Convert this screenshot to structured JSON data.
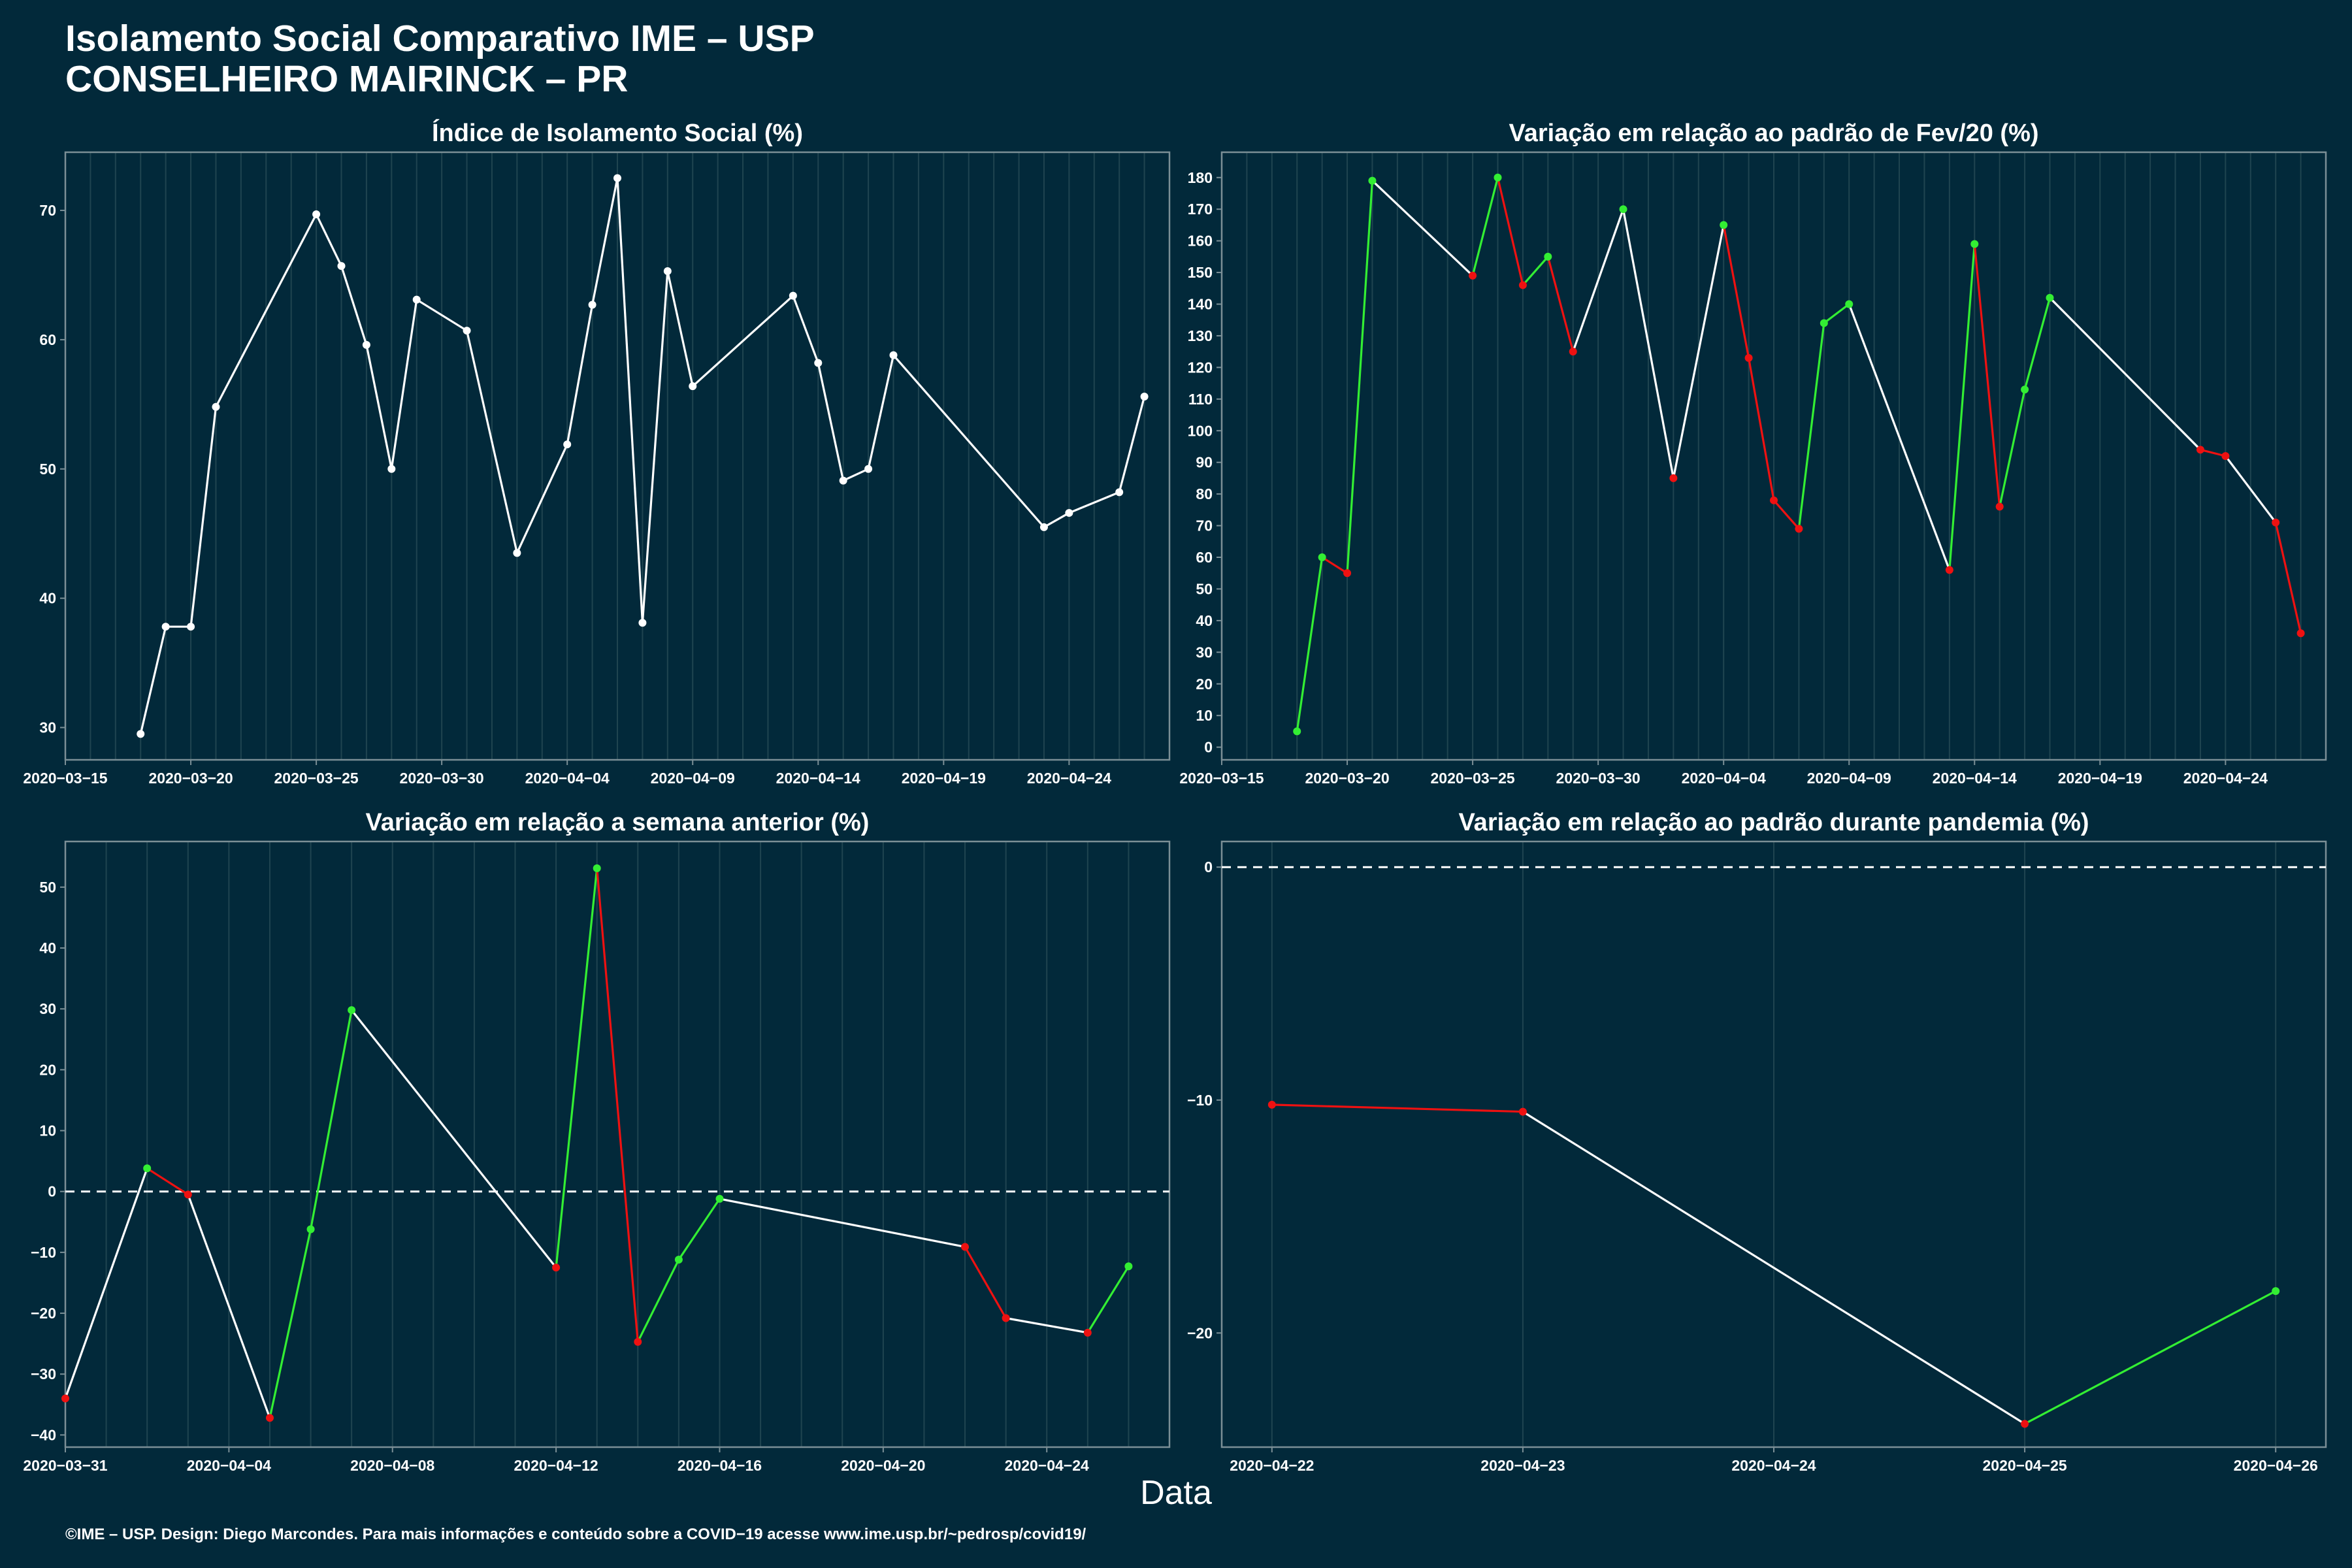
{
  "header": {
    "title_line1": "Isolamento Social Comparativo IME – USP",
    "title_line2": "CONSELHEIRO MAIRINCK – PR"
  },
  "x_axis_title": "Data",
  "caption": "©IME – USP. Design: Diego Marcondes. Para mais informações e conteúdo sobre a COVID−19 acesse www.ime.usp.br/~pedrosp/covid19/",
  "colors": {
    "background": "#02293a",
    "line": "#ffffff",
    "up": "#33ee33",
    "down": "#ee1111",
    "grid": "#1f4450",
    "frame": "#7b8f96"
  },
  "chart_data": [
    {
      "id": "isolation_index",
      "type": "line",
      "title": "Índice de Isolamento Social (%)",
      "xlim": [
        "2020-03-15",
        "2020-04-28"
      ],
      "ylim": [
        27.5,
        74.5
      ],
      "x_ticks": [
        "2020-03-15",
        "2020-03-20",
        "2020-03-25",
        "2020-03-30",
        "2020-04-04",
        "2020-04-09",
        "2020-04-14",
        "2020-04-19",
        "2020-04-24"
      ],
      "y_ticks": [
        30,
        40,
        50,
        60,
        70
      ],
      "color_mode": "white",
      "series": [
        {
          "x": [
            "2020-03-18",
            "2020-03-19",
            "2020-03-20",
            "2020-03-21",
            "2020-03-25",
            "2020-03-26",
            "2020-03-27",
            "2020-03-28",
            "2020-03-29",
            "2020-03-31",
            "2020-04-02",
            "2020-04-04",
            "2020-04-05",
            "2020-04-06",
            "2020-04-07",
            "2020-04-08",
            "2020-04-09",
            "2020-04-13",
            "2020-04-14",
            "2020-04-15",
            "2020-04-16",
            "2020-04-17",
            "2020-04-23",
            "2020-04-24",
            "2020-04-26",
            "2020-04-27"
          ],
          "y": [
            29.5,
            37.8,
            37.8,
            54.8,
            69.7,
            65.7,
            59.6,
            50.0,
            63.1,
            60.7,
            43.5,
            51.9,
            62.7,
            72.5,
            38.1,
            65.3,
            56.4,
            63.4,
            58.2,
            49.1,
            50.0,
            58.8,
            45.5,
            46.6,
            48.2,
            55.6
          ]
        }
      ]
    },
    {
      "id": "variation_feb",
      "type": "line",
      "title": "Variação em relação ao padrão de Fev/20 (%)",
      "xlim": [
        "2020-03-15",
        "2020-04-28"
      ],
      "ylim": [
        -4,
        188
      ],
      "x_ticks": [
        "2020-03-15",
        "2020-03-20",
        "2020-03-25",
        "2020-03-30",
        "2020-04-04",
        "2020-04-09",
        "2020-04-14",
        "2020-04-19",
        "2020-04-24"
      ],
      "y_ticks": [
        0,
        10,
        20,
        30,
        40,
        50,
        60,
        70,
        80,
        90,
        100,
        110,
        120,
        130,
        140,
        150,
        160,
        170,
        180
      ],
      "color_mode": "updown",
      "series": [
        {
          "x": [
            "2020-03-18",
            "2020-03-19",
            "2020-03-20",
            "2020-03-21",
            "2020-03-25",
            "2020-03-26",
            "2020-03-27",
            "2020-03-28",
            "2020-03-29",
            "2020-03-31",
            "2020-04-02",
            "2020-04-04",
            "2020-04-05",
            "2020-04-06",
            "2020-04-07",
            "2020-04-08",
            "2020-04-09",
            "2020-04-13",
            "2020-04-14",
            "2020-04-15",
            "2020-04-16",
            "2020-04-17",
            "2020-04-23",
            "2020-04-24",
            "2020-04-26",
            "2020-04-27"
          ],
          "y": [
            5,
            60,
            55,
            179,
            149,
            180,
            146,
            155,
            125,
            170,
            85,
            165,
            123,
            78,
            69,
            134,
            140,
            56,
            159,
            76,
            113,
            142,
            94,
            92,
            71,
            36
          ]
        }
      ]
    },
    {
      "id": "variation_week",
      "type": "line",
      "title": "Variação em relação a semana anterior (%)",
      "xlim": [
        "2020-03-31",
        "2020-04-27"
      ],
      "ylim": [
        -42,
        57.5
      ],
      "x_ticks": [
        "2020-03-31",
        "2020-04-04",
        "2020-04-08",
        "2020-04-12",
        "2020-04-16",
        "2020-04-20",
        "2020-04-24"
      ],
      "y_ticks": [
        -40,
        -30,
        -20,
        -10,
        0,
        10,
        20,
        30,
        40,
        50
      ],
      "zero_line": true,
      "color_mode": "updown",
      "series": [
        {
          "x": [
            "2020-03-31",
            "2020-04-02",
            "2020-04-03",
            "2020-04-05",
            "2020-04-06",
            "2020-04-07",
            "2020-04-12",
            "2020-04-13",
            "2020-04-14",
            "2020-04-15",
            "2020-04-16",
            "2020-04-22",
            "2020-04-23",
            "2020-04-25",
            "2020-04-26"
          ],
          "y": [
            -34,
            3.8,
            -0.5,
            -37.2,
            -6.2,
            29.8,
            -12.5,
            53.1,
            -24.7,
            -11.2,
            -1.2,
            -9.1,
            -20.8,
            -23.2,
            -12.3
          ]
        }
      ]
    },
    {
      "id": "variation_pandemic",
      "type": "line",
      "title": "Variação em relação ao padrão durante pandemia (%)",
      "xlim": [
        "2020-04-21.8",
        "2020-04-26.2"
      ],
      "ylim": [
        -24.9,
        1.1
      ],
      "x_ticks": [
        "2020-04-22",
        "2020-04-23",
        "2020-04-24",
        "2020-04-25",
        "2020-04-26"
      ],
      "y_ticks": [
        -20,
        -10,
        0
      ],
      "zero_line": true,
      "color_mode": "updown",
      "series": [
        {
          "x": [
            "2020-04-22",
            "2020-04-23",
            "2020-04-25",
            "2020-04-26"
          ],
          "y": [
            -10.2,
            -10.5,
            -23.9,
            -18.2
          ]
        }
      ]
    }
  ]
}
